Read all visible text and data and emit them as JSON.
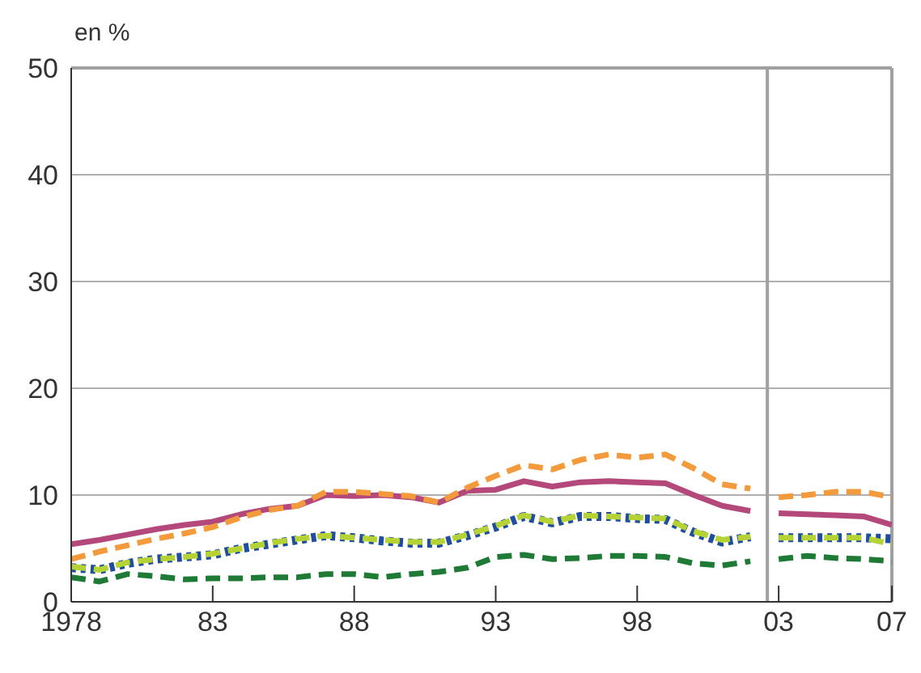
{
  "chart_data": {
    "type": "line",
    "ylabel": "en %",
    "x": [
      1978,
      1979,
      1980,
      1981,
      1982,
      1983,
      1984,
      1985,
      1986,
      1987,
      1988,
      1989,
      1990,
      1991,
      1992,
      1993,
      1994,
      1995,
      1996,
      1997,
      1998,
      1999,
      2000,
      2001,
      2002,
      2003,
      2004,
      2005,
      2006,
      2007
    ],
    "series": [
      {
        "color": "#1e7a34",
        "line_style": "dashed",
        "values": [
          2.3,
          1.9,
          2.6,
          2.4,
          2.1,
          2.2,
          2.2,
          2.3,
          2.3,
          2.6,
          2.6,
          2.3,
          2.6,
          2.8,
          3.2,
          4.2,
          4.4,
          4.0,
          4.1,
          4.3,
          4.3,
          4.2,
          3.6,
          3.4,
          3.8,
          4.0,
          4.3,
          4.1,
          4.0,
          3.8
        ]
      },
      {
        "color": "#1f4e9c",
        "line_style": "dotted",
        "values": [
          3.2,
          3.0,
          3.6,
          4.0,
          4.2,
          4.4,
          5.0,
          5.4,
          5.8,
          6.2,
          6.0,
          5.7,
          5.5,
          5.5,
          6.2,
          7.0,
          8.0,
          7.4,
          8.0,
          8.0,
          7.8,
          7.7,
          6.5,
          5.6,
          6.1,
          6.0,
          6.0,
          6.0,
          6.0,
          5.9
        ]
      },
      {
        "color": "#b5d334",
        "line_style": "dashed",
        "values": [
          3.3,
          3.0,
          3.7,
          4.0,
          4.2,
          4.5,
          5.0,
          5.5,
          5.9,
          6.2,
          6.0,
          5.8,
          5.6,
          5.6,
          6.3,
          7.1,
          8.1,
          7.5,
          8.1,
          8.0,
          7.9,
          7.8,
          6.6,
          5.8,
          6.1,
          6.0,
          6.0,
          6.0,
          6.0,
          5.4
        ]
      },
      {
        "color": "#b5487a",
        "line_style": "solid",
        "values": [
          5.4,
          5.8,
          6.3,
          6.8,
          7.2,
          7.5,
          8.2,
          8.7,
          9.0,
          10.0,
          9.9,
          10.0,
          9.8,
          9.3,
          10.4,
          10.5,
          11.3,
          10.8,
          11.2,
          11.3,
          11.2,
          11.1,
          10.0,
          9.0,
          8.5,
          8.3,
          8.2,
          8.1,
          8.0,
          7.2
        ]
      },
      {
        "color": "#f39a3c",
        "line_style": "dashed",
        "values": [
          4.0,
          4.7,
          5.3,
          5.9,
          6.4,
          7.0,
          7.9,
          8.6,
          9.0,
          10.3,
          10.3,
          10.1,
          9.9,
          9.3,
          10.7,
          11.8,
          12.8,
          12.4,
          13.3,
          13.8,
          13.5,
          13.8,
          12.5,
          11.0,
          10.6,
          9.8,
          10.0,
          10.3,
          10.3,
          9.8
        ]
      }
    ],
    "xlim": [
      1978,
      2007
    ],
    "xticks": [
      1978,
      {
        "value": 1983,
        "label": "83"
      },
      {
        "value": 1988,
        "label": "88"
      },
      {
        "value": 1993,
        "label": "93"
      },
      {
        "value": 1998,
        "label": "98"
      },
      {
        "value": 2003,
        "label": "03"
      },
      {
        "value": 2007,
        "label": "07"
      }
    ],
    "ylim": [
      0,
      50
    ],
    "yticks": [
      0,
      10,
      20,
      30,
      40,
      50
    ],
    "grid": "y",
    "ref_lines": [
      {
        "axis": "x",
        "value": 2002.6,
        "color": "#a0a0a0"
      }
    ]
  }
}
